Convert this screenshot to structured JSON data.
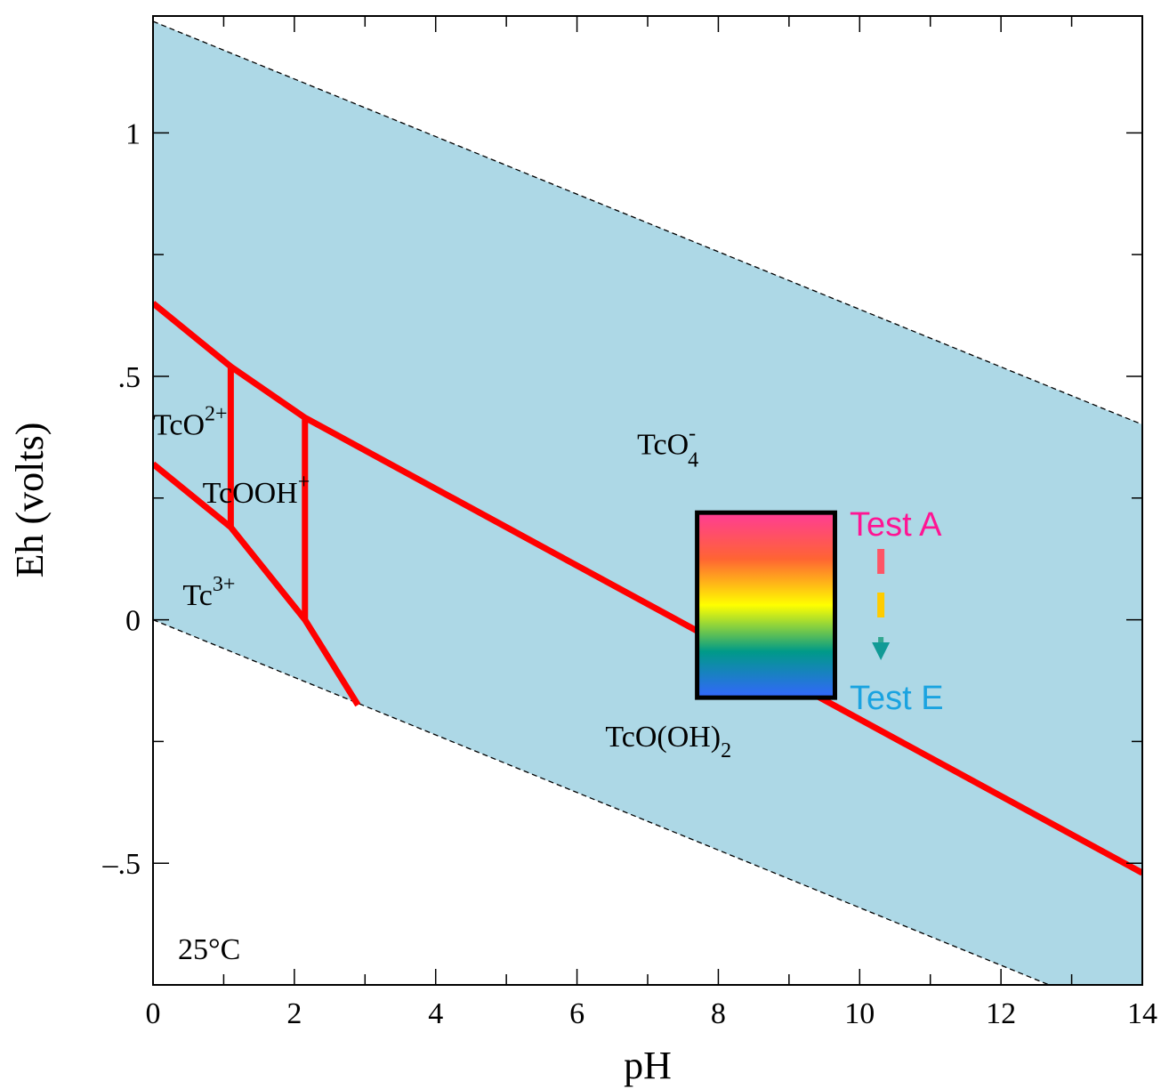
{
  "chart_data": {
    "type": "line",
    "title": "",
    "xlabel": "pH",
    "ylabel": "Eh (volts)",
    "xlim": [
      0,
      14
    ],
    "ylim": [
      -0.75,
      1.24
    ],
    "x_ticks": [
      0,
      2,
      4,
      6,
      8,
      10,
      12,
      14
    ],
    "x_tick_labels": [
      "0",
      "2",
      "4",
      "6",
      "8",
      "10",
      "12",
      "14"
    ],
    "y_ticks": [
      -0.5,
      0,
      0.5,
      1
    ],
    "y_tick_labels": [
      "–.5",
      "0",
      ".5",
      "1"
    ],
    "grid": false,
    "legend": "none",
    "temperature_label": "25°C",
    "stability_field": {
      "color": "#add8e6",
      "upper_line": [
        [
          0,
          1.229
        ],
        [
          14,
          0.401
        ]
      ],
      "lower_line": [
        [
          0,
          0.0
        ],
        [
          14,
          -0.828
        ]
      ]
    },
    "boundaries": [
      {
        "points": [
          [
            0,
            0.65
          ],
          [
            1.1,
            0.52
          ],
          [
            2.15,
            0.415
          ],
          [
            14,
            -0.52
          ]
        ]
      },
      {
        "points": [
          [
            0,
            0.32
          ],
          [
            1.1,
            0.19
          ],
          [
            2.15,
            0.0
          ],
          [
            2.9,
            -0.175
          ]
        ]
      },
      {
        "points": [
          [
            1.1,
            0.52
          ],
          [
            1.1,
            0.19
          ]
        ]
      },
      {
        "points": [
          [
            2.15,
            0.415
          ],
          [
            2.15,
            0.0
          ]
        ]
      }
    ],
    "boundary_color": "#ff0000",
    "species_labels": [
      {
        "base": "TcO",
        "sup": "2+",
        "sub": "",
        "x": 0.0,
        "y": 0.38
      },
      {
        "base": "TcOOH",
        "sup": "+",
        "sub": "",
        "x": 0.7,
        "y": 0.24
      },
      {
        "base": "Tc",
        "sup": "3+",
        "sub": "",
        "x": 0.42,
        "y": 0.03
      },
      {
        "base": "TcO",
        "sup": "-",
        "sub": "4",
        "x": 6.85,
        "y": 0.34
      },
      {
        "base": "TcO(OH)",
        "sup": "",
        "sub": "2",
        "x": 6.4,
        "y": -0.26
      }
    ],
    "test_box": {
      "x_range": [
        7.7,
        9.65
      ],
      "y_range": [
        -0.16,
        0.22
      ],
      "gradient": [
        "#ff3c96",
        "#ff6433",
        "#ffff00",
        "#009a88",
        "#3366ff"
      ]
    },
    "tests": {
      "start_label": "Test A",
      "end_label": "Test E",
      "start_color": "#ff1493",
      "end_color": "#1aa3e0",
      "arrow_x": 10.3
    }
  }
}
